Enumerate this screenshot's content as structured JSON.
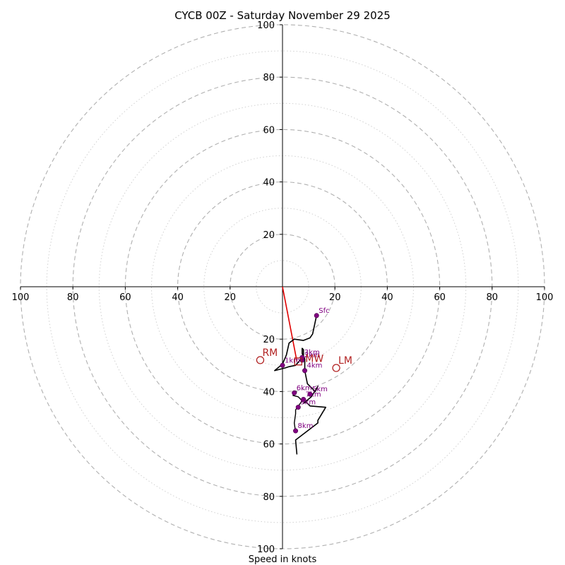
{
  "chart_data": {
    "type": "scatter",
    "title": "CYCB 00Z - Saturday November 29 2025",
    "xlabel": "Speed in knots",
    "range": [
      0,
      100
    ],
    "ring_major": [
      20,
      40,
      60,
      80,
      100
    ],
    "ring_minor": [
      10,
      30,
      50,
      70,
      90
    ],
    "tick_values": [
      20,
      40,
      60,
      80,
      100
    ],
    "axis_color": "#000000",
    "ring_color": "#b0b0b0",
    "trace_color": "#000000",
    "point_color": "#800080",
    "label_color": "#800080",
    "shear_color": "#e00000",
    "motion_color": "#b22222",
    "hodograph_trace": [
      [
        13,
        -11
      ],
      [
        11.5,
        -18
      ],
      [
        10.5,
        -19.5
      ],
      [
        8,
        -20.5
      ],
      [
        4.5,
        -20
      ],
      [
        2.5,
        -21.5
      ],
      [
        1.5,
        -26
      ],
      [
        0,
        -29.5
      ],
      [
        -3,
        -32
      ],
      [
        1,
        -31
      ],
      [
        2.5,
        -30.5
      ],
      [
        5,
        -30
      ],
      [
        8,
        -26.5
      ],
      [
        8,
        -24
      ],
      [
        7.5,
        -23.5
      ],
      [
        7.5,
        -25.5
      ],
      [
        8.5,
        -27.5
      ],
      [
        8.5,
        -32
      ],
      [
        9.5,
        -37
      ],
      [
        12.5,
        -40
      ],
      [
        13.5,
        -38
      ],
      [
        11,
        -42
      ],
      [
        8,
        -44.5
      ],
      [
        9,
        -44
      ],
      [
        10.5,
        -45.5
      ],
      [
        16.5,
        -46
      ],
      [
        13.5,
        -51
      ],
      [
        13.5,
        -52
      ],
      [
        5,
        -58.5
      ],
      [
        5.5,
        -64
      ]
    ],
    "extra_trace": [
      [
        5.5,
        -40
      ],
      [
        4,
        -41.5
      ],
      [
        6,
        -42
      ],
      [
        7.5,
        -43.5
      ],
      [
        5,
        -47
      ],
      [
        5,
        -48.5
      ],
      [
        4.5,
        -52
      ],
      [
        5,
        -55.5
      ]
    ],
    "height_points": [
      {
        "label": "Sfc",
        "u": 13,
        "v": -11
      },
      {
        "label": "1km",
        "u": 0,
        "v": -30
      },
      {
        "label": "2km",
        "u": 7.5,
        "v": -28
      },
      {
        "label": "3km",
        "u": 7.5,
        "v": -27
      },
      {
        "label": "4km",
        "u": 8.5,
        "v": -32
      },
      {
        "label": "5km",
        "u": 10.5,
        "v": -41
      },
      {
        "label": "6km",
        "u": 4.5,
        "v": -40.5
      },
      {
        "label": "7km",
        "u": 8,
        "v": -43
      },
      {
        "label": "8km",
        "u": 5,
        "v": -55
      },
      {
        "label": "9km",
        "u": 6,
        "v": -46
      }
    ],
    "motion_markers": [
      {
        "label": "RM",
        "u": -8.5,
        "v": -28,
        "marker": "circle"
      },
      {
        "label": "LM",
        "u": 20.5,
        "v": -31,
        "marker": "circle"
      },
      {
        "label": "MW",
        "u": 6,
        "v": -28.5,
        "marker": "square"
      }
    ],
    "shear_vector": {
      "from": [
        0,
        0
      ],
      "to": [
        5.5,
        -28.5
      ]
    }
  }
}
